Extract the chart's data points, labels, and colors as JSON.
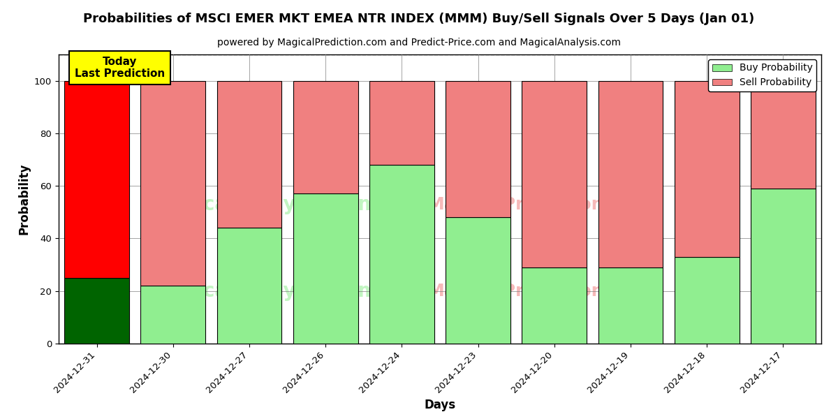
{
  "title": "Probabilities of MSCI EMER MKT EMEA NTR INDEX (MMM) Buy/Sell Signals Over 5 Days (Jan 01)",
  "subtitle": "powered by MagicalPrediction.com and Predict-Price.com and MagicalAnalysis.com",
  "xlabel": "Days",
  "ylabel": "Probability",
  "categories": [
    "2024-12-31",
    "2024-12-30",
    "2024-12-27",
    "2024-12-26",
    "2024-12-24",
    "2024-12-23",
    "2024-12-20",
    "2024-12-19",
    "2024-12-18",
    "2024-12-17"
  ],
  "buy_values": [
    25,
    22,
    44,
    57,
    68,
    48,
    29,
    29,
    33,
    59
  ],
  "sell_values": [
    75,
    78,
    56,
    43,
    32,
    52,
    71,
    71,
    67,
    41
  ],
  "today_buy_color": "#006400",
  "today_sell_color": "#ff0000",
  "normal_buy_color": "#90EE90",
  "normal_sell_color": "#F08080",
  "today_index": 0,
  "bar_width": 0.85,
  "ylim": [
    0,
    110
  ],
  "yticks": [
    0,
    20,
    40,
    60,
    80,
    100
  ],
  "dashed_line_y": 110,
  "legend_buy_label": "Buy Probability",
  "legend_sell_label": "Sell Probability",
  "today_annotation_text": "Today\nLast Prediction",
  "today_annotation_bg": "#ffff00",
  "background_color": "#ffffff",
  "title_fontsize": 13,
  "subtitle_fontsize": 10,
  "axis_label_fontsize": 12,
  "tick_fontsize": 9.5
}
